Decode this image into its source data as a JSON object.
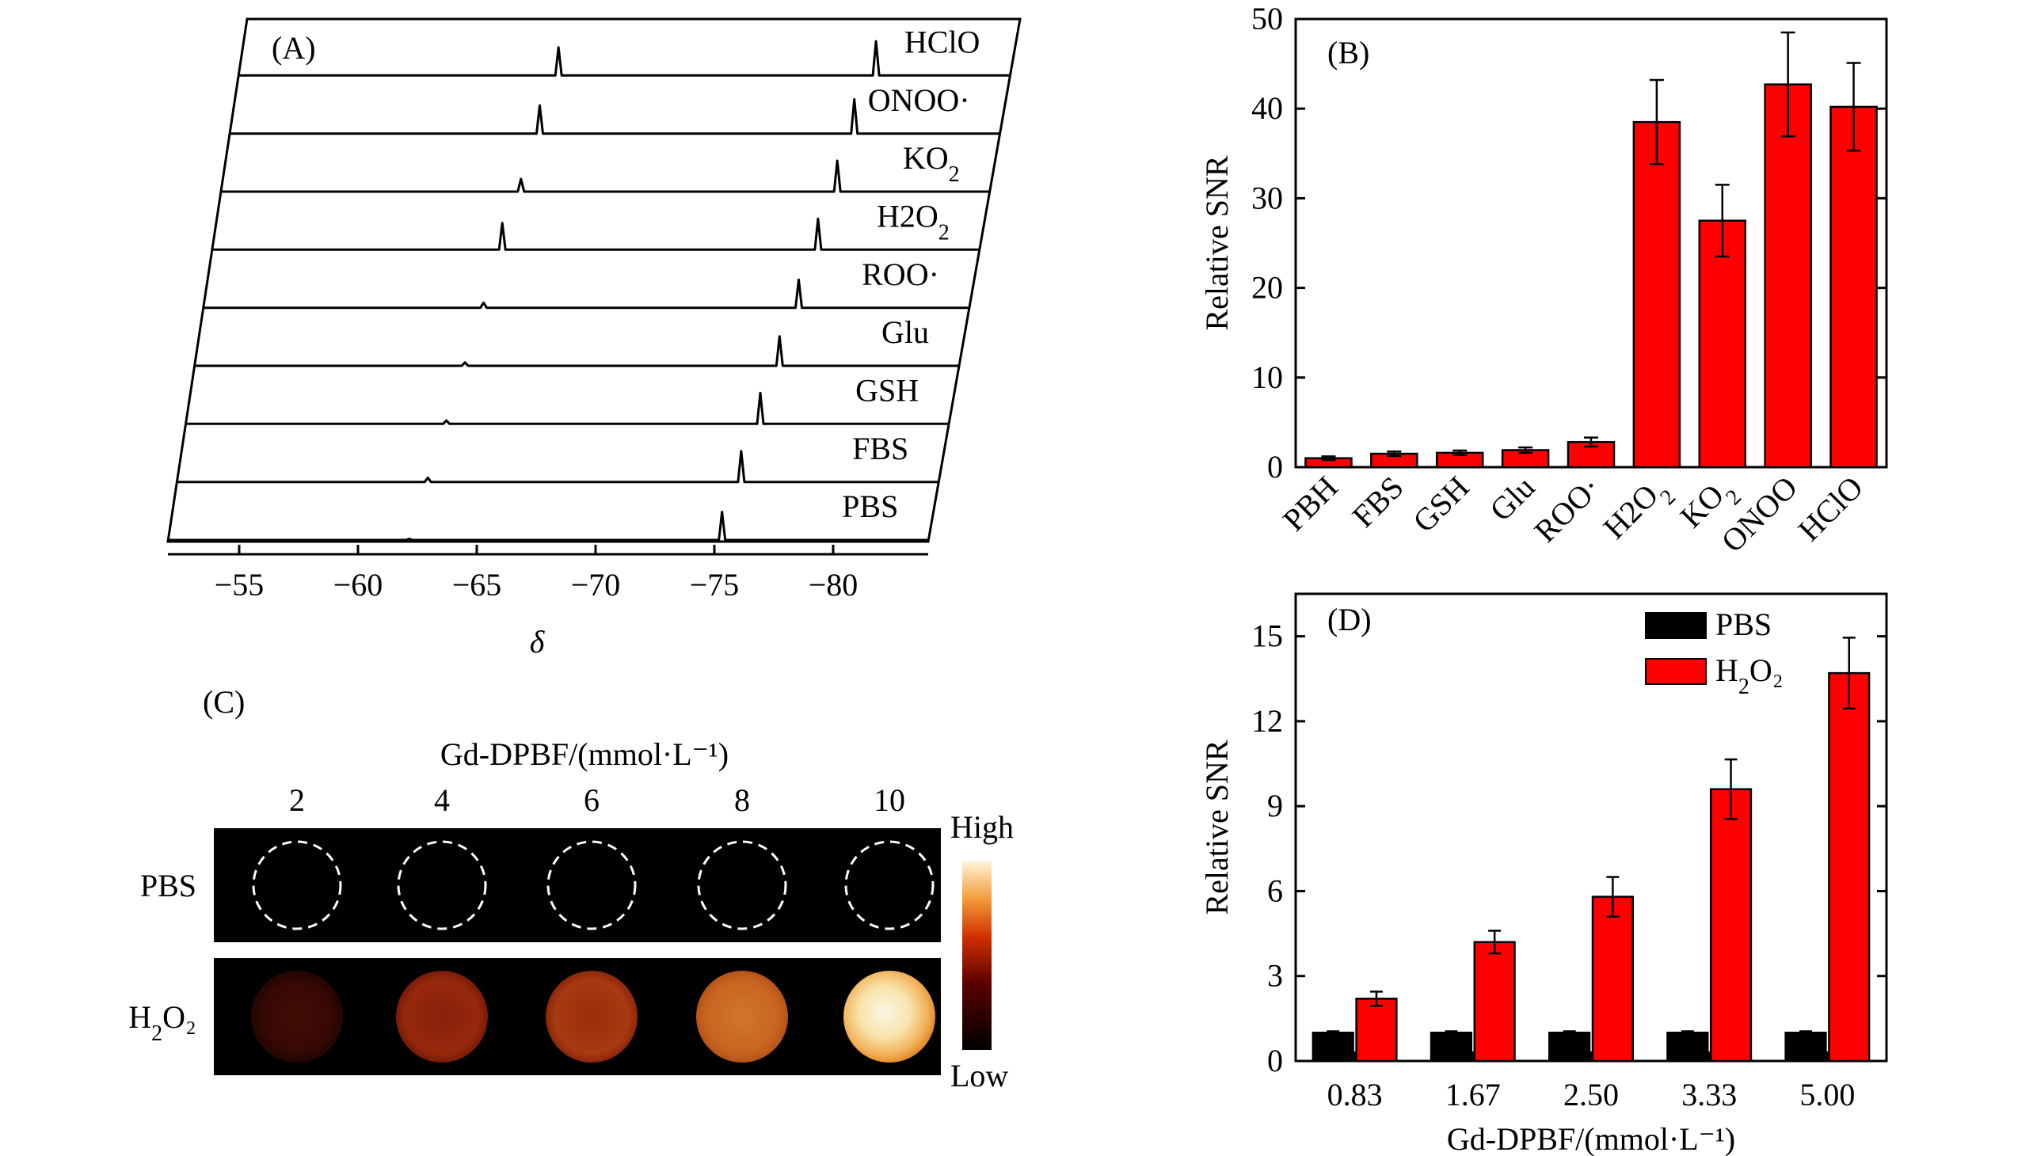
{
  "chart_data": [
    {
      "panel": "(A)",
      "type": "line",
      "title": "",
      "xlabel": "δ",
      "ylabel": "",
      "xlim": [
        -52,
        -84
      ],
      "x_ticks": [
        -55,
        -60,
        -65,
        -70,
        -75,
        -80
      ],
      "x_tick_labels": [
        "−55",
        "−60",
        "−65",
        "−70",
        "−75",
        "−80"
      ],
      "series": [
        {
          "name": "HClO",
          "label_main": "HClO",
          "label_sub": "",
          "label_tail": "",
          "peaks": [
            {
              "x": -65.2,
              "h": 1.0
            },
            {
              "x": -78.7,
              "h": 1.22
            }
          ]
        },
        {
          "name": "ONOO·",
          "label_main": "ONOO",
          "label_sub": "",
          "label_tail": "·",
          "peaks": [
            {
              "x": -64.8,
              "h": 1.0
            },
            {
              "x": -78.2,
              "h": 1.22
            }
          ]
        },
        {
          "name": "KO2",
          "label_main": "KO",
          "label_sub": "2",
          "label_tail": "",
          "peaks": [
            {
              "x": -64.4,
              "h": 0.45
            },
            {
              "x": -77.9,
              "h": 1.1
            }
          ]
        },
        {
          "name": "H2O2",
          "label_main": "H2O",
          "label_sub": "2",
          "label_tail": "",
          "peaks": [
            {
              "x": -64.0,
              "h": 0.95
            },
            {
              "x": -77.5,
              "h": 1.1
            }
          ]
        },
        {
          "name": "ROO·",
          "label_main": "ROO",
          "label_sub": "",
          "label_tail": "·",
          "peaks": [
            {
              "x": -63.6,
              "h": 0.18
            },
            {
              "x": -77.1,
              "h": 1.0
            }
          ]
        },
        {
          "name": "Glu",
          "label_main": "Glu",
          "label_sub": "",
          "label_tail": "",
          "peaks": [
            {
              "x": -63.2,
              "h": 0.12
            },
            {
              "x": -76.7,
              "h": 1.05
            }
          ]
        },
        {
          "name": "GSH",
          "label_main": "GSH",
          "label_sub": "",
          "label_tail": "",
          "peaks": [
            {
              "x": -62.8,
              "h": 0.12
            },
            {
              "x": -76.3,
              "h": 1.1
            }
          ]
        },
        {
          "name": "FBS",
          "label_main": "FBS",
          "label_sub": "",
          "label_tail": "",
          "peaks": [
            {
              "x": -62.4,
              "h": 0.15
            },
            {
              "x": -75.9,
              "h": 1.1
            }
          ]
        },
        {
          "name": "PBS",
          "label_main": "PBS",
          "label_sub": "",
          "label_tail": "",
          "peaks": [
            {
              "x": -62.0,
              "h": 0.04
            },
            {
              "x": -75.5,
              "h": 1.0
            }
          ]
        }
      ]
    },
    {
      "panel": "(B)",
      "type": "bar",
      "title": "",
      "xlabel": "",
      "ylabel": "Relative SNR",
      "ylim": [
        0,
        50
      ],
      "y_ticks": [
        0,
        10,
        20,
        30,
        40,
        50
      ],
      "categories": [
        {
          "main": "PBH",
          "sub": "",
          "tail": ""
        },
        {
          "main": "FBS",
          "sub": "",
          "tail": ""
        },
        {
          "main": "GSH",
          "sub": "",
          "tail": ""
        },
        {
          "main": "Glu",
          "sub": "",
          "tail": ""
        },
        {
          "main": "ROO",
          "sub": "",
          "tail": "·"
        },
        {
          "main": "H2O",
          "sub": "2",
          "tail": ""
        },
        {
          "main": "KO",
          "sub": "2",
          "tail": ""
        },
        {
          "main": "ONOO",
          "sub": "",
          "tail": ""
        },
        {
          "main": "HClO",
          "sub": "",
          "tail": ""
        }
      ],
      "values": [
        1.0,
        1.5,
        1.6,
        1.9,
        2.8,
        38.5,
        27.5,
        42.7,
        40.2
      ],
      "errors": [
        0.2,
        0.25,
        0.25,
        0.3,
        0.5,
        4.7,
        4.0,
        5.8,
        4.9
      ],
      "bar_color": "#ff0000"
    },
    {
      "panel": "(C)",
      "type": "heatmap",
      "title": "Gd-DPBF/(mmol·L⁻¹)",
      "xlabel": "Gd-DPBF/(mmol·L⁻¹)",
      "ylabel": "",
      "concentrations": [
        "2",
        "4",
        "6",
        "8",
        "10"
      ],
      "rows": [
        {
          "name": "PBS",
          "label_main": "PBS",
          "label_sub": "",
          "label_tail": "",
          "intensity": [
            0,
            0,
            0,
            0,
            0
          ]
        },
        {
          "name": "H2O2",
          "label_main": "H",
          "label_sub": "2",
          "label_tail": "O₂",
          "intensity": [
            0.15,
            0.45,
            0.52,
            0.72,
            0.95
          ]
        }
      ],
      "colorbar_high": "High",
      "colorbar_low": "Low"
    },
    {
      "panel": "(D)",
      "type": "bar",
      "title": "",
      "xlabel": "Gd-DPBF/(mmol·L⁻¹)",
      "ylabel": "Relative SNR",
      "ylim": [
        0,
        16.5
      ],
      "y_ticks": [
        0,
        3,
        6,
        9,
        12,
        15
      ],
      "categories": [
        "0.83",
        "1.67",
        "2.50",
        "3.33",
        "5.00"
      ],
      "series": [
        {
          "name": "PBS",
          "label_main": "PBS",
          "label_sub": "",
          "label_tail": "",
          "color": "#000000",
          "values": [
            1.0,
            1.0,
            1.0,
            1.0,
            1.0
          ],
          "errors": [
            0.05,
            0.05,
            0.05,
            0.05,
            0.05
          ]
        },
        {
          "name": "H2O2",
          "label_main": "H",
          "label_sub": "2",
          "label_tail": "O₂",
          "color": "#ff0000",
          "values": [
            2.2,
            4.2,
            5.8,
            9.6,
            13.7
          ],
          "errors": [
            0.25,
            0.4,
            0.7,
            1.05,
            1.25
          ]
        }
      ]
    }
  ]
}
